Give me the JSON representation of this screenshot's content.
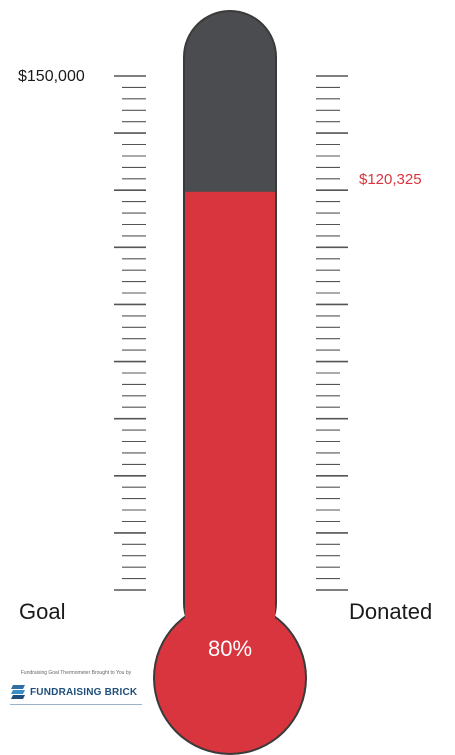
{
  "thermometer": {
    "goal_amount": "$150,000",
    "donated_amount": "$120,325",
    "percent": "80%",
    "progress_fraction": 0.8,
    "goal_label": "Goal",
    "donated_label": "Donated",
    "colors": {
      "fill": "#d9353f",
      "empty": "#4b4c4f",
      "outline": "#3a3a3a",
      "tick": "#555555",
      "donated_text": "#d9353f"
    }
  },
  "branding": {
    "tagline": "Fundraising Goal Thermometer Brought to You by",
    "name": "FUNDRAISING BRICK",
    "logo_icon": "brick-logo-icon",
    "brand_color": "#1e4f7a"
  }
}
